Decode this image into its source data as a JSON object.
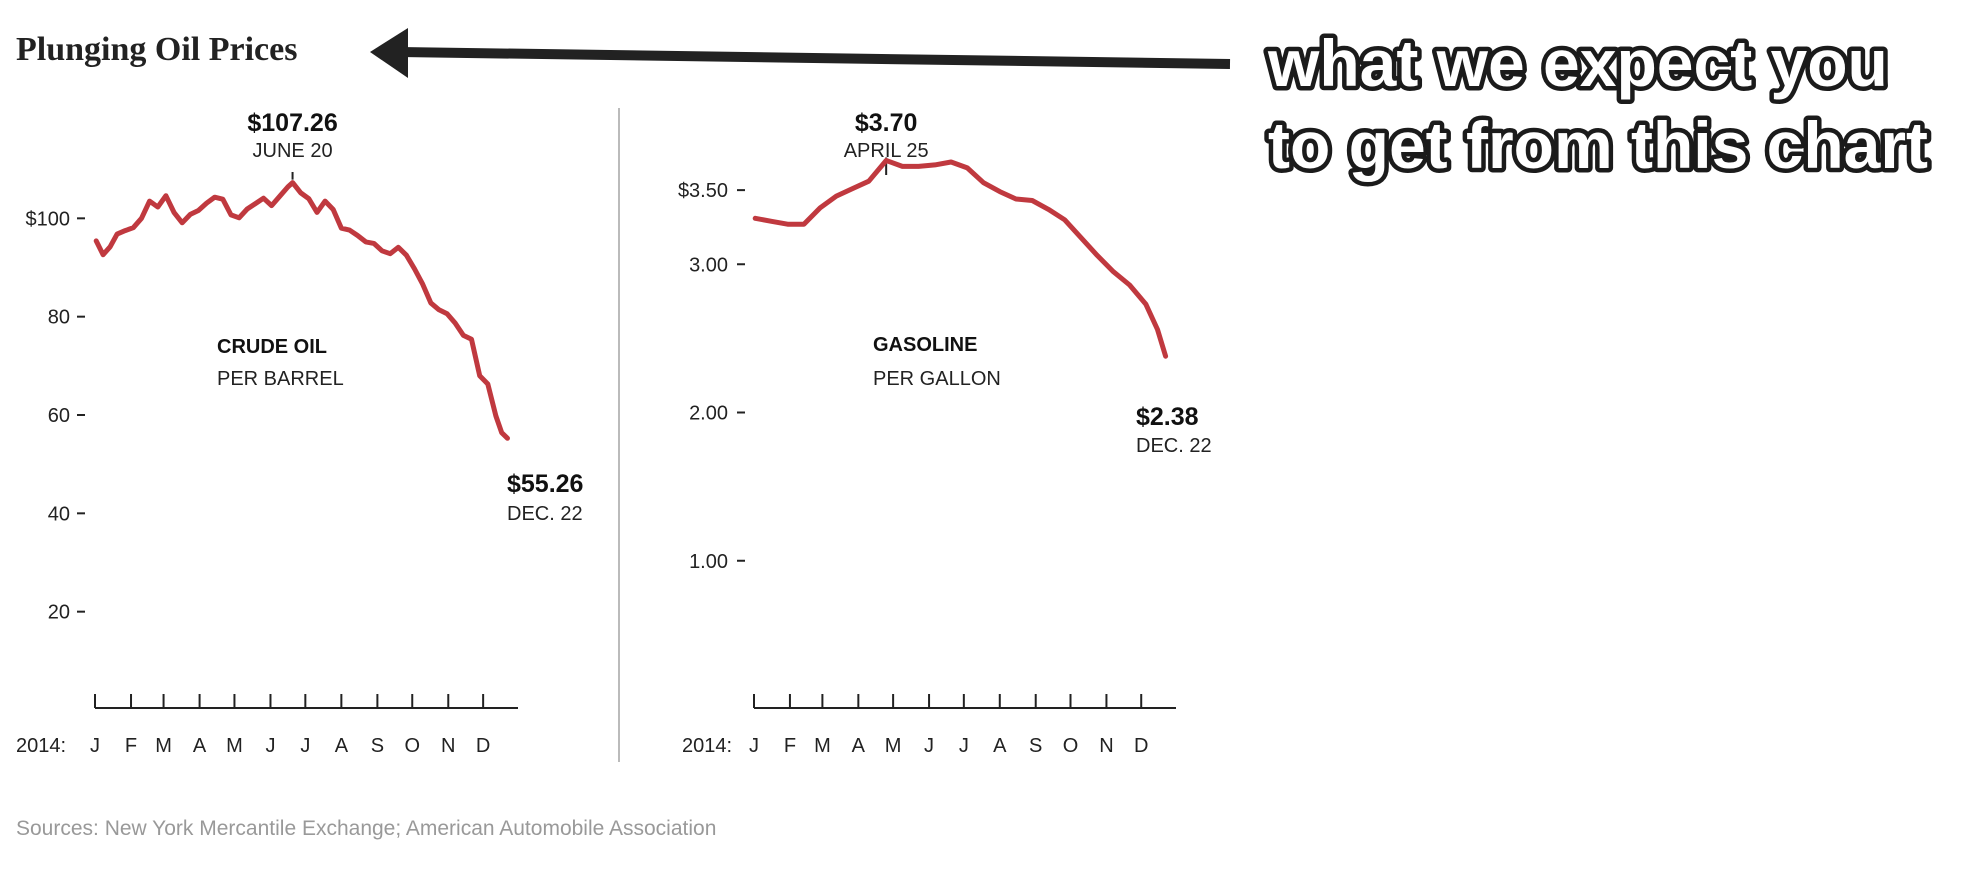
{
  "title": "Plunging Oil Prices",
  "callout": {
    "line1": "what we expect you",
    "line2": "to get from this chart"
  },
  "source": "Sources: New York Mercantile Exchange; American Automobile Association",
  "colors": {
    "line": "#c0393f",
    "axis": "#222222",
    "divider": "#bbbbbb",
    "source": "#999999",
    "arrow": "#222222"
  },
  "chart_data": [
    {
      "type": "line",
      "title": "CRUDE OIL",
      "subtitle": "PER BARREL",
      "year_label": "2014:",
      "months": [
        "J",
        "F",
        "M",
        "A",
        "M",
        "J",
        "J",
        "A",
        "S",
        "O",
        "N",
        "D"
      ],
      "yticks": [
        {
          "value": 100,
          "label": "$100"
        },
        {
          "value": 80,
          "label": "80"
        },
        {
          "value": 60,
          "label": "60"
        },
        {
          "value": 40,
          "label": "40"
        },
        {
          "value": 20,
          "label": "20"
        }
      ],
      "ylim": [
        0,
        120
      ],
      "peak": {
        "value": "$107.26",
        "date": "JUNE 20"
      },
      "end": {
        "value": "$55.26",
        "date": "DEC. 22"
      },
      "x": [
        "2014-01-02",
        "2014-01-08",
        "2014-01-14",
        "2014-01-20",
        "2014-01-27",
        "2014-02-03",
        "2014-02-10",
        "2014-02-17",
        "2014-02-24",
        "2014-03-03",
        "2014-03-10",
        "2014-03-17",
        "2014-03-24",
        "2014-03-31",
        "2014-04-07",
        "2014-04-14",
        "2014-04-21",
        "2014-04-28",
        "2014-05-05",
        "2014-05-12",
        "2014-05-19",
        "2014-05-26",
        "2014-06-02",
        "2014-06-09",
        "2014-06-16",
        "2014-06-20",
        "2014-06-27",
        "2014-07-04",
        "2014-07-11",
        "2014-07-18",
        "2014-07-25",
        "2014-08-01",
        "2014-08-08",
        "2014-08-15",
        "2014-08-22",
        "2014-08-29",
        "2014-09-05",
        "2014-09-12",
        "2014-09-19",
        "2014-09-26",
        "2014-10-03",
        "2014-10-10",
        "2014-10-17",
        "2014-10-24",
        "2014-10-31",
        "2014-11-07",
        "2014-11-14",
        "2014-11-21",
        "2014-11-28",
        "2014-12-05",
        "2014-12-12",
        "2014-12-17",
        "2014-12-22"
      ],
      "values": [
        95.4,
        92.6,
        94.2,
        96.8,
        97.5,
        98.1,
        100.0,
        103.5,
        102.3,
        104.6,
        101.2,
        99.1,
        100.8,
        101.6,
        103.1,
        104.3,
        103.9,
        100.7,
        100.1,
        101.9,
        103.0,
        104.1,
        102.6,
        104.5,
        106.4,
        107.26,
        105.2,
        104.0,
        101.2,
        103.5,
        101.8,
        98.0,
        97.6,
        96.5,
        95.2,
        94.9,
        93.4,
        92.8,
        94.1,
        92.5,
        89.7,
        86.6,
        82.8,
        81.4,
        80.6,
        78.7,
        76.2,
        75.4,
        68.0,
        66.3,
        59.8,
        56.4,
        55.26
      ]
    },
    {
      "type": "line",
      "title": "GASOLINE",
      "subtitle": "PER GALLON",
      "year_label": "2014:",
      "months": [
        "J",
        "F",
        "M",
        "A",
        "M",
        "J",
        "J",
        "A",
        "S",
        "O",
        "N",
        "D"
      ],
      "yticks": [
        {
          "value": 3.5,
          "label": "$3.50"
        },
        {
          "value": 3.0,
          "label": "3.00"
        },
        {
          "value": 2.0,
          "label": "2.00"
        },
        {
          "value": 1.0,
          "label": "1.00"
        }
      ],
      "ylim": [
        0,
        4
      ],
      "peak": {
        "value": "$3.70",
        "date": "APRIL 25"
      },
      "end": {
        "value": "$2.38",
        "date": "DEC. 22"
      },
      "x": [
        "2014-01-02",
        "2014-01-16",
        "2014-01-30",
        "2014-02-13",
        "2014-02-27",
        "2014-03-13",
        "2014-03-27",
        "2014-04-10",
        "2014-04-25",
        "2014-05-09",
        "2014-05-23",
        "2014-06-06",
        "2014-06-20",
        "2014-07-04",
        "2014-07-18",
        "2014-08-01",
        "2014-08-15",
        "2014-08-29",
        "2014-09-12",
        "2014-09-26",
        "2014-10-10",
        "2014-10-24",
        "2014-11-07",
        "2014-11-21",
        "2014-12-05",
        "2014-12-15",
        "2014-12-22"
      ],
      "values": [
        3.31,
        3.29,
        3.27,
        3.27,
        3.38,
        3.46,
        3.51,
        3.56,
        3.7,
        3.66,
        3.66,
        3.67,
        3.69,
        3.65,
        3.55,
        3.49,
        3.44,
        3.43,
        3.37,
        3.3,
        3.18,
        3.06,
        2.95,
        2.86,
        2.73,
        2.56,
        2.38
      ]
    }
  ]
}
